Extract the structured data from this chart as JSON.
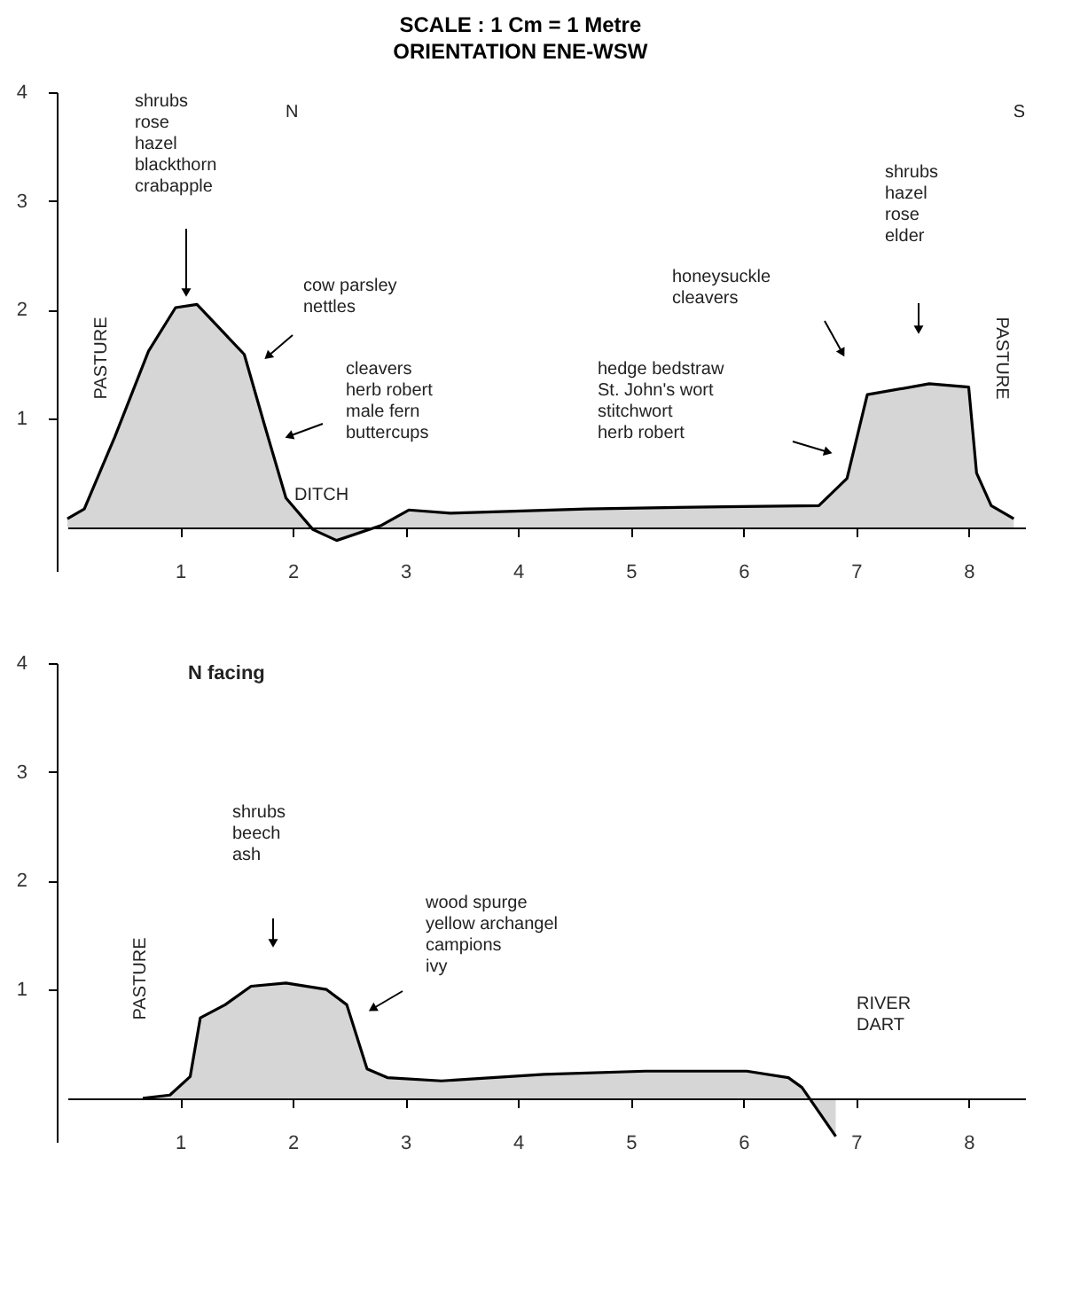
{
  "chart_data": [
    {
      "type": "area",
      "title": "SCALE : 1 Cm = 1 Metre",
      "subtitle": "ORIENTATION ENE-WSW",
      "x": [
        0,
        0.15,
        0.42,
        0.72,
        0.96,
        1.15,
        1.57,
        1.75,
        1.94,
        2.18,
        2.39,
        2.79,
        3.03,
        3.4,
        4.6,
        5.83,
        6.67,
        6.92,
        7.1,
        7.65,
        8.0,
        8.07,
        8.2,
        8.4
      ],
      "values": [
        0.08,
        0.17,
        0.83,
        1.62,
        2.02,
        2.05,
        1.59,
        0.94,
        0.27,
        -0.02,
        -0.12,
        0.02,
        0.16,
        0.13,
        0.17,
        0.19,
        0.2,
        0.45,
        1.22,
        1.32,
        1.29,
        0.5,
        0.2,
        0.08
      ],
      "color": "#000000",
      "xlim": [
        0,
        8.5
      ],
      "xticks": [
        1,
        2,
        3,
        4,
        5,
        6,
        7,
        8
      ],
      "ylim": [
        -0.4,
        4
      ],
      "yticks": [
        1,
        2,
        3,
        4
      ],
      "annotations": [
        "shrubs\nrose\nhazel\nblackthorn\ncrabapple",
        "cow parsley\nnettles",
        "cleavers\nherb robert\nmale fern\nbuttercups",
        "DITCH",
        "honeysuckle\ncleavers",
        "hedge bedstraw\nSt. John's wort\nstitchwort\nherb robert",
        "shrubs\nhazel\nrose\nelder",
        "N",
        "S",
        "PASTURE",
        "PASTURE"
      ]
    },
    {
      "type": "area",
      "title": "N facing",
      "x": [
        0.67,
        0.91,
        1.09,
        1.18,
        1.4,
        1.63,
        1.94,
        2.3,
        2.48,
        2.66,
        2.84,
        3.32,
        4.23,
        5.13,
        6.03,
        6.4,
        6.52,
        6.82
      ],
      "values": [
        0,
        0.03,
        0.2,
        0.74,
        0.86,
        1.03,
        1.06,
        1.0,
        0.86,
        0.27,
        0.19,
        0.16,
        0.22,
        0.25,
        0.25,
        0.19,
        0.1,
        -0.35
      ],
      "color": "#000000",
      "xlim": [
        0,
        8.5
      ],
      "xticks": [
        1,
        2,
        3,
        4,
        5,
        6,
        7,
        8
      ],
      "ylim": [
        -0.4,
        4
      ],
      "yticks": [
        1,
        2,
        3,
        4
      ],
      "annotations": [
        "shrubs\nbeech\nash",
        "wood spurge\nyellow archangel\ncampions\nivy",
        "PASTURE",
        "RIVER\nDART"
      ]
    }
  ]
}
